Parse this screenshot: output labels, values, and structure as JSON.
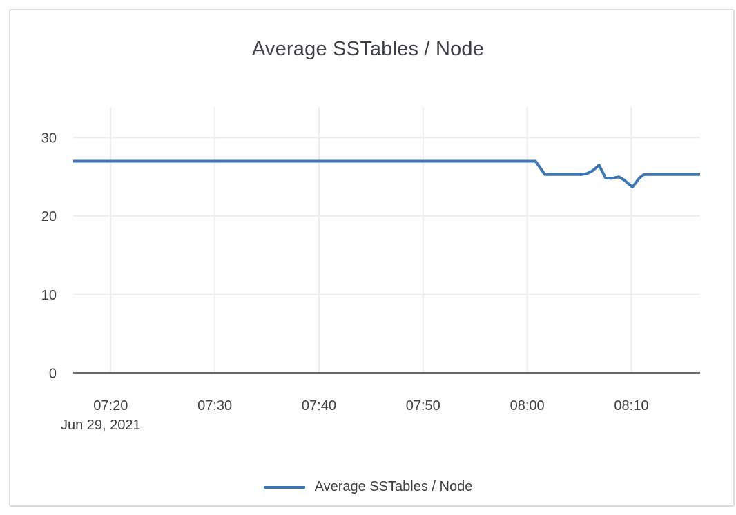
{
  "chart_data": {
    "type": "line",
    "title": "Average SSTables / Node",
    "x_axis": {
      "date_label": "Jun 29, 2021",
      "tick_minutes_since_0700": [
        20,
        30,
        40,
        50,
        60,
        70
      ],
      "tick_labels": [
        "07:20",
        "07:30",
        "07:40",
        "07:50",
        "08:00",
        "08:10"
      ],
      "range_minutes_since_0700": [
        16.4,
        76.6
      ],
      "grid": true
    },
    "y_axis": {
      "ticks": [
        0,
        10,
        20,
        30
      ],
      "tick_labels": [
        "0",
        "10",
        "20",
        "30"
      ],
      "range": [
        0,
        33.9
      ],
      "grid": true
    },
    "series": [
      {
        "name": "Average SSTables / Node",
        "color": "#3d76b4",
        "points_minutes_value": [
          [
            16.4,
            27.0
          ],
          [
            60.8,
            27.0
          ],
          [
            61.7,
            25.3
          ],
          [
            65.2,
            25.3
          ],
          [
            65.7,
            25.4
          ],
          [
            66.3,
            25.8
          ],
          [
            66.9,
            26.5
          ],
          [
            67.5,
            24.9
          ],
          [
            68.1,
            24.8
          ],
          [
            68.8,
            25.0
          ],
          [
            69.3,
            24.6
          ],
          [
            70.1,
            23.7
          ],
          [
            70.8,
            24.9
          ],
          [
            71.2,
            25.3
          ],
          [
            76.6,
            25.3
          ]
        ]
      }
    ],
    "legend": {
      "position": "bottom",
      "entries": [
        {
          "label": "Average SSTables / Node",
          "color": "#3d76b4"
        }
      ]
    },
    "colors": {
      "series": "#3d76b4",
      "grid": "#ededed",
      "axis_line": "#333333",
      "text": "#3c4043",
      "title": "#3d4045",
      "card_border": "#dcdcdc",
      "background": "#ffffff"
    }
  }
}
